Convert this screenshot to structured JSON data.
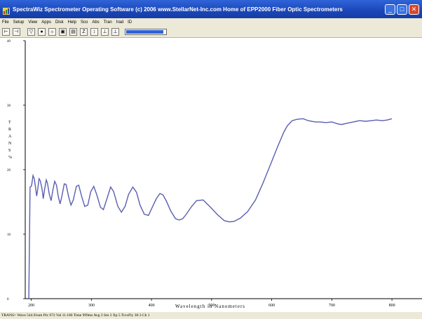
{
  "window": {
    "title": "SpectraWiz  Spectrometer Operating Software (c) 2006  www.StellarNet-Inc.com  Home of EPP2000 Fiber Optic Spectrometers",
    "minimize_glyph": "_",
    "maximize_glyph": "□",
    "close_glyph": "✕"
  },
  "menu": [
    "File",
    "Setup",
    "View",
    "Apps",
    "Disk",
    "Help",
    "Sco",
    "Abs",
    "Tran",
    "Irad",
    "ID"
  ],
  "toolbar": {
    "buttons": [
      {
        "name": "marker-left-icon",
        "glyph": "⊢"
      },
      {
        "name": "marker-right-icon",
        "glyph": "⊣"
      },
      {
        "name": "filter-icon",
        "glyph": "▽"
      },
      {
        "name": "dark-bulb-icon",
        "glyph": "●"
      },
      {
        "name": "light-bulb-icon",
        "glyph": "☼"
      },
      {
        "name": "save-disk-icon",
        "glyph": "▣"
      },
      {
        "name": "print-icon",
        "glyph": "▤"
      },
      {
        "name": "zoom-icon",
        "glyph": "Z"
      },
      {
        "name": "scale-icon",
        "glyph": "↕"
      },
      {
        "name": "peak-icon",
        "glyph": "⊥"
      },
      {
        "name": "baseline-icon",
        "glyph": "⊥"
      }
    ],
    "progress_fraction": 0.95,
    "progress_color": "#2e63d5"
  },
  "chart_data": {
    "type": "line",
    "xlabel": "Wavelength in Nanometers",
    "ylabel": "T R A N S %",
    "xlim": [
      190,
      850
    ],
    "ylim": [
      0,
      40
    ],
    "x_ticks": [
      200,
      300,
      400,
      500,
      600,
      700,
      800
    ],
    "y_ticks": [
      0,
      10,
      20,
      30,
      40
    ],
    "y_tick_labels": [
      "0",
      "10",
      "20",
      "30",
      "40"
    ],
    "series": [
      {
        "color": "#5a5fb0",
        "points": [
          [
            196,
            0
          ],
          [
            198,
            17.3
          ],
          [
            200,
            17.4
          ],
          [
            201,
            17.8
          ],
          [
            203,
            19.1
          ],
          [
            205,
            18.6
          ],
          [
            207,
            17.3
          ],
          [
            209,
            15.9
          ],
          [
            211,
            17.1
          ],
          [
            213,
            18.6
          ],
          [
            215,
            18.3
          ],
          [
            218,
            17.0
          ],
          [
            220,
            15.5
          ],
          [
            222,
            16.8
          ],
          [
            225,
            18.4
          ],
          [
            227,
            17.9
          ],
          [
            230,
            16.2
          ],
          [
            233,
            15.2
          ],
          [
            236,
            16.8
          ],
          [
            239,
            18.2
          ],
          [
            242,
            17.6
          ],
          [
            245,
            15.8
          ],
          [
            248,
            14.7
          ],
          [
            251,
            15.9
          ],
          [
            255,
            17.8
          ],
          [
            258,
            17.7
          ],
          [
            262,
            15.9
          ],
          [
            266,
            14.5
          ],
          [
            270,
            15.3
          ],
          [
            275,
            17.4
          ],
          [
            279,
            17.6
          ],
          [
            284,
            15.8
          ],
          [
            289,
            14.3
          ],
          [
            294,
            14.5
          ],
          [
            299,
            16.6
          ],
          [
            304,
            17.4
          ],
          [
            309,
            16.1
          ],
          [
            315,
            14.2
          ],
          [
            320,
            13.8
          ],
          [
            326,
            15.5
          ],
          [
            332,
            17.3
          ],
          [
            337,
            16.6
          ],
          [
            344,
            14.3
          ],
          [
            350,
            13.4
          ],
          [
            356,
            14.3
          ],
          [
            362,
            16.2
          ],
          [
            369,
            17.3
          ],
          [
            375,
            16.5
          ],
          [
            381,
            14.5
          ],
          [
            388,
            13.1
          ],
          [
            395,
            12.9
          ],
          [
            401,
            14.1
          ],
          [
            408,
            15.5
          ],
          [
            414,
            16.3
          ],
          [
            419,
            16.1
          ],
          [
            425,
            15.1
          ],
          [
            432,
            13.6
          ],
          [
            440,
            12.4
          ],
          [
            446,
            12.2
          ],
          [
            452,
            12.4
          ],
          [
            458,
            13.1
          ],
          [
            466,
            14.2
          ],
          [
            475,
            15.2
          ],
          [
            486,
            15.3
          ],
          [
            498,
            14.2
          ],
          [
            510,
            13.0
          ],
          [
            521,
            12.1
          ],
          [
            530,
            11.9
          ],
          [
            538,
            12.0
          ],
          [
            548,
            12.5
          ],
          [
            560,
            13.5
          ],
          [
            573,
            15.3
          ],
          [
            585,
            17.8
          ],
          [
            598,
            20.8
          ],
          [
            610,
            23.6
          ],
          [
            620,
            25.8
          ],
          [
            626,
            26.8
          ],
          [
            634,
            27.6
          ],
          [
            642,
            27.8
          ],
          [
            652,
            27.9
          ],
          [
            661,
            27.6
          ],
          [
            672,
            27.4
          ],
          [
            680,
            27.4
          ],
          [
            690,
            27.3
          ],
          [
            700,
            27.4
          ],
          [
            710,
            27.1
          ],
          [
            716,
            27.0
          ],
          [
            725,
            27.2
          ],
          [
            736,
            27.4
          ],
          [
            746,
            27.6
          ],
          [
            756,
            27.5
          ],
          [
            766,
            27.6
          ],
          [
            774,
            27.7
          ],
          [
            784,
            27.6
          ],
          [
            792,
            27.7
          ],
          [
            800,
            27.9
          ]
        ]
      }
    ]
  },
  "status": "TRANS> Wave 544.91nm  Pix 972  Val 11.180  Time 999ms  Avg 3  Sm 3  Xp 5  TrcoFly 30:3  Ch 1"
}
